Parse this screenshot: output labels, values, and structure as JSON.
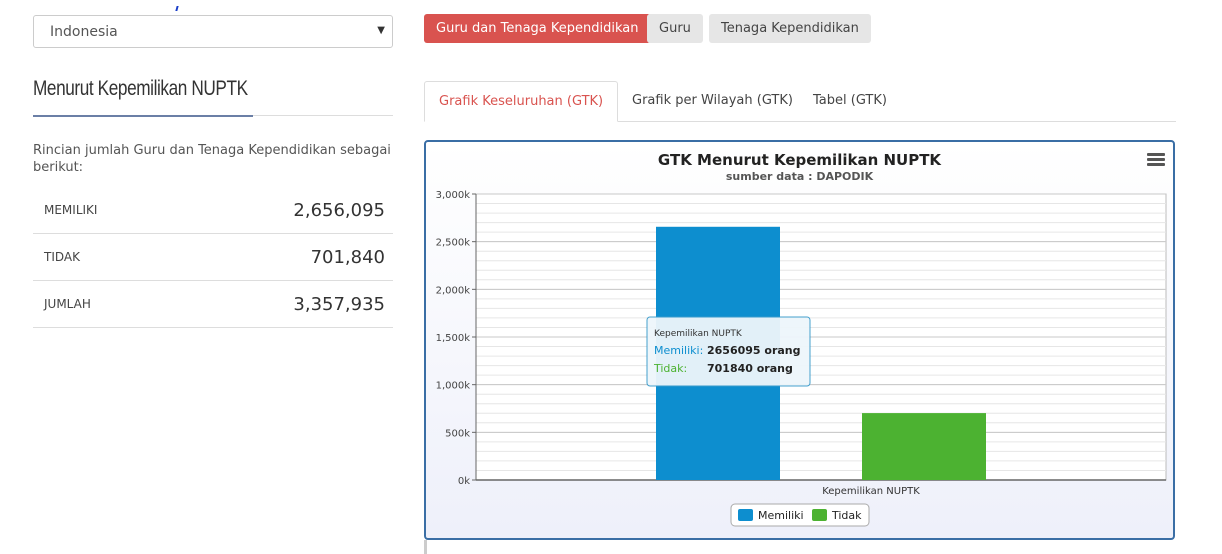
{
  "region_select": {
    "value": "Indonesia"
  },
  "section": {
    "title": "Menurut Kepemilikan NUPTK",
    "description": "Rincian jumlah Guru dan Tenaga Kependidikan sebagai berikut:"
  },
  "stats": [
    {
      "label": "MEMILIKI",
      "value": "2,656,095"
    },
    {
      "label": "TIDAK",
      "value": "701,840"
    },
    {
      "label": "JUMLAH",
      "value": "3,357,935"
    }
  ],
  "filter_buttons": [
    {
      "label": "Guru dan Tenaga Kependidikan",
      "active": true
    },
    {
      "label": "Guru",
      "active": false
    },
    {
      "label": "Tenaga Kependidikan",
      "active": false
    }
  ],
  "tabs": [
    {
      "label": "Grafik Keseluruhan (GTK)",
      "active": true
    },
    {
      "label": "Grafik per Wilayah (GTK)",
      "active": false
    },
    {
      "label": "Tabel (GTK)",
      "active": false
    }
  ],
  "colors": {
    "accent_red": "#d9534f",
    "series_memiliki": "#0d8ecf",
    "series_tidak": "#4cb231",
    "panel_border": "#3a6ea5"
  },
  "chart_data": {
    "type": "bar",
    "title": "GTK Menurut Kepemilikan NUPTK",
    "subtitle": "sumber data : DAPODIK",
    "categories": [
      "Kepemilikan NUPTK"
    ],
    "series": [
      {
        "name": "Memiliki",
        "values": [
          2656095
        ],
        "color": "#0d8ecf"
      },
      {
        "name": "Tidak",
        "values": [
          701840
        ],
        "color": "#4cb231"
      }
    ],
    "ylim": [
      0,
      3000000
    ],
    "yticks": [
      "0k",
      "500k",
      "1,000k",
      "1,500k",
      "2,000k",
      "2,500k",
      "3,000k"
    ],
    "grid": true,
    "legend": "bottom-center",
    "tooltip": {
      "header": "Kepemilikan NUPTK",
      "rows": [
        {
          "name": "Memiliki:",
          "value": "2656095 orang"
        },
        {
          "name": "Tidak:",
          "value": "701840 orang"
        }
      ]
    }
  }
}
